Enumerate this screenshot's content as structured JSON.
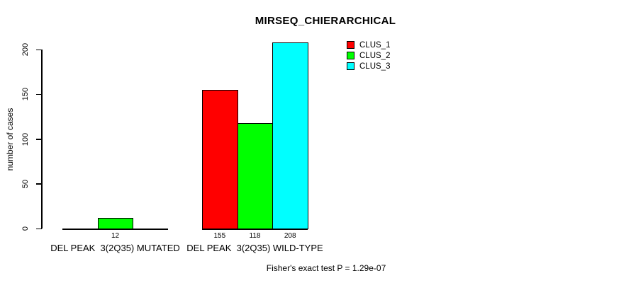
{
  "chart_data": {
    "type": "bar",
    "title": "MIRSEQ_CHIERARCHICAL",
    "ylabel": "number of cases",
    "xlabel": "",
    "yticks": [
      0,
      50,
      100,
      150,
      200
    ],
    "ylim": [
      0,
      210
    ],
    "grid": false,
    "legend_position": "top-right",
    "series": [
      {
        "name": "CLUS_1",
        "color": "#FF0000"
      },
      {
        "name": "CLUS_2",
        "color": "#00FF00"
      },
      {
        "name": "CLUS_3",
        "color": "#00FFFF"
      }
    ],
    "groups": [
      {
        "label": "DEL PEAK  3(2Q35) MUTATED",
        "values": [
          0,
          12,
          0
        ],
        "value_labels": [
          "",
          "12",
          ""
        ]
      },
      {
        "label": "DEL PEAK  3(2Q35) WILD-TYPE",
        "values": [
          155,
          118,
          208
        ],
        "value_labels": [
          "155",
          "118",
          "208"
        ]
      }
    ],
    "annotation": "Fisher's exact test P = 1.29e-07"
  }
}
